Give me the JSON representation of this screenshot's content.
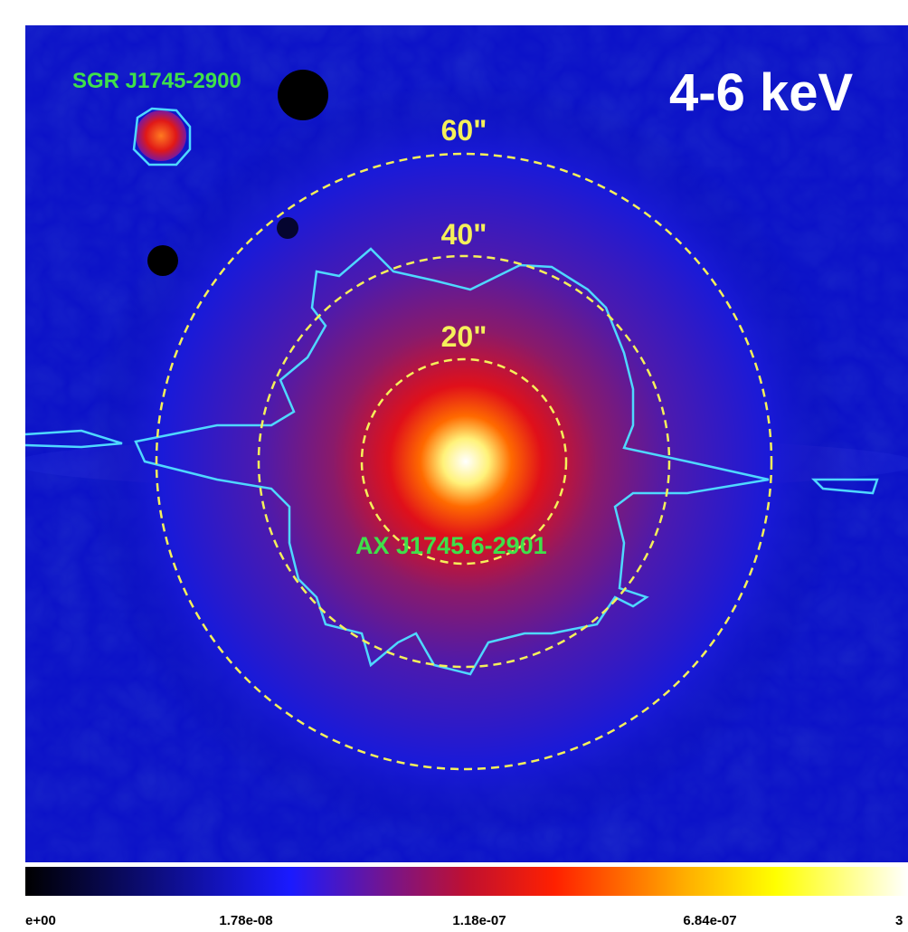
{
  "image": {
    "band_label": "4-6 keV",
    "sources": [
      "SGR J1745-2900",
      "AX J1745.6-2901"
    ],
    "radii": [
      "60\"",
      "40\"",
      "20\""
    ]
  },
  "colorbar": {
    "tick_labels": [
      "e+00",
      "1.78e-08",
      "1.18e-07",
      "6.84e-07",
      "3"
    ]
  }
}
